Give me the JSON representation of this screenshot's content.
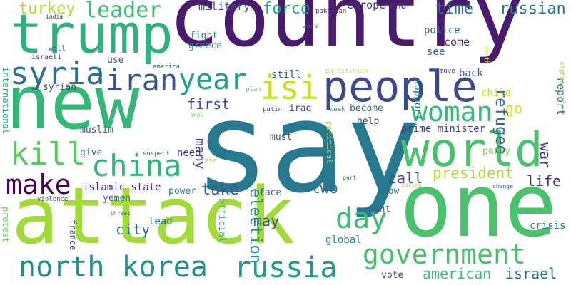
{
  "words": [
    {
      "text": "say",
      "color": "#26798e"
    },
    {
      "text": "country",
      "color": "#481b6d"
    },
    {
      "text": "new",
      "color": "#35b779"
    },
    {
      "text": "attack",
      "color": "#a2da37"
    },
    {
      "text": "one",
      "color": "#4ac16d"
    },
    {
      "text": "trump",
      "color": "#2db27d"
    },
    {
      "text": "world",
      "color": "#4ac16d"
    },
    {
      "text": "people",
      "color": "#3e4989"
    },
    {
      "text": "government",
      "color": "#4ac16d"
    },
    {
      "text": "russia",
      "color": "#1f9a8a"
    },
    {
      "text": "north korea",
      "color": "#20928c"
    },
    {
      "text": "kill",
      "color": "#5ec962"
    },
    {
      "text": "china",
      "color": "#31b57b"
    },
    {
      "text": "syria",
      "color": "#2d718e"
    },
    {
      "text": "iran",
      "color": "#3b528b"
    },
    {
      "text": "year",
      "color": "#1fa188"
    },
    {
      "text": "isi",
      "color": "#c8e020"
    },
    {
      "text": "make",
      "color": "#440154"
    },
    {
      "text": "woman",
      "color": "#38b977"
    },
    {
      "text": "day",
      "color": "#3dbc74"
    },
    {
      "text": "leader",
      "color": "#3dbc74"
    },
    {
      "text": "turkey",
      "color": "#addc30"
    },
    {
      "text": "president",
      "color": "#addc30"
    },
    {
      "text": "two",
      "color": "#2c728e"
    },
    {
      "text": "take",
      "color": "#365d8d"
    },
    {
      "text": "election",
      "color": "#218f8d"
    },
    {
      "text": "may",
      "color": "#39568c"
    },
    {
      "text": "city",
      "color": "#2f6c8e"
    },
    {
      "text": "american",
      "color": "#3bbb75"
    },
    {
      "text": "israel",
      "color": "#2e6e8e"
    },
    {
      "text": "refugee",
      "color": "#31678e"
    },
    {
      "text": "russian",
      "color": "#2a778e"
    },
    {
      "text": "time",
      "color": "#2e6f8e"
    },
    {
      "text": "force",
      "color": "#22a884"
    },
    {
      "text": "first",
      "color": "#3e4a89"
    },
    {
      "text": "call",
      "color": "#3e4c8a"
    },
    {
      "text": "life",
      "color": "#472d7b"
    },
    {
      "text": "war",
      "color": "#423f85"
    },
    {
      "text": "go",
      "color": "#cde11d"
    },
    {
      "text": "many",
      "color": "#3f4788"
    },
    {
      "text": "report",
      "color": "#2a788e"
    },
    {
      "text": "military",
      "color": "#3a538b"
    },
    {
      "text": "europe",
      "color": "#46337e"
    },
    {
      "text": "end",
      "color": "#46307e"
    },
    {
      "text": "come",
      "color": "#482677"
    },
    {
      "text": "police",
      "color": "#31688e"
    },
    {
      "text": "see",
      "color": "#32648e"
    },
    {
      "text": "back",
      "color": "#3b528b"
    },
    {
      "text": "child",
      "color": "#c0df25"
    },
    {
      "text": "support",
      "color": "#24878e"
    },
    {
      "text": "still",
      "color": "#35608d"
    },
    {
      "text": "iraq",
      "color": "#433e85"
    },
    {
      "text": "become",
      "color": "#365c8d"
    },
    {
      "text": "help",
      "color": "#404688"
    },
    {
      "text": "must",
      "color": "#3e4c8a"
    },
    {
      "text": "prime minister",
      "color": "#453882"
    },
    {
      "text": "party",
      "color": "#7ad151"
    },
    {
      "text": "fight",
      "color": "#21908d"
    },
    {
      "text": "greece",
      "color": "#21918c"
    },
    {
      "text": "syrian",
      "color": "#3f4889"
    },
    {
      "text": "use",
      "color": "#3b528b"
    },
    {
      "text": "muslim",
      "color": "#3a548c"
    },
    {
      "text": "islamic state",
      "color": "#472f7d"
    },
    {
      "text": "yemen",
      "color": "#2f6b8e"
    },
    {
      "text": "power",
      "color": "#2a788e"
    },
    {
      "text": "need",
      "color": "#453882"
    },
    {
      "text": "give",
      "color": "#31688e"
    },
    {
      "text": "face",
      "color": "#38588c"
    },
    {
      "text": "know",
      "color": "#2c728e"
    },
    {
      "text": "want",
      "color": "#30698e"
    },
    {
      "text": "crisis",
      "color": "#277f8e"
    },
    {
      "text": "global",
      "color": "#26828e"
    },
    {
      "text": "vote",
      "color": "#3e4a89"
    },
    {
      "text": "lead",
      "color": "#2c728e"
    },
    {
      "text": "official",
      "color": "#3bbb75"
    },
    {
      "text": "political",
      "color": "#a8db34"
    },
    {
      "text": "france",
      "color": "#3a548c"
    },
    {
      "text": "protest",
      "color": "#6ccd5a"
    },
    {
      "text": "international",
      "color": "#21a585"
    },
    {
      "text": "well",
      "color": "#31688e"
    },
    {
      "text": "israeli",
      "color": "#414487"
    },
    {
      "text": "india",
      "color": "#46337e"
    },
    {
      "text": "pakistan",
      "color": "#453581"
    },
    {
      "text": "work",
      "color": "#31688e"
    },
    {
      "text": "america",
      "color": "#38598c"
    },
    {
      "text": "plan",
      "color": "#52c569"
    },
    {
      "text": "palestinian",
      "color": "#d8e219"
    },
    {
      "text": "death",
      "color": "#fde725"
    },
    {
      "text": "move",
      "color": "#482878"
    },
    {
      "text": "afghanistan",
      "color": "#b5de2b"
    },
    {
      "text": "putin",
      "color": "#453882"
    },
    {
      "text": "week",
      "color": "#2a788e"
    },
    {
      "text": "show",
      "color": "#6ece58"
    },
    {
      "text": "suspect",
      "color": "#31688e"
    },
    {
      "text": "state",
      "color": "#a8db34"
    },
    {
      "text": "part",
      "color": "#2c728e"
    },
    {
      "text": "nation",
      "color": "#bddf26"
    },
    {
      "text": "change",
      "color": "#32648e"
    },
    {
      "text": "violence",
      "color": "#3b528b"
    },
    {
      "text": "threat",
      "color": "#3e4989"
    }
  ]
}
